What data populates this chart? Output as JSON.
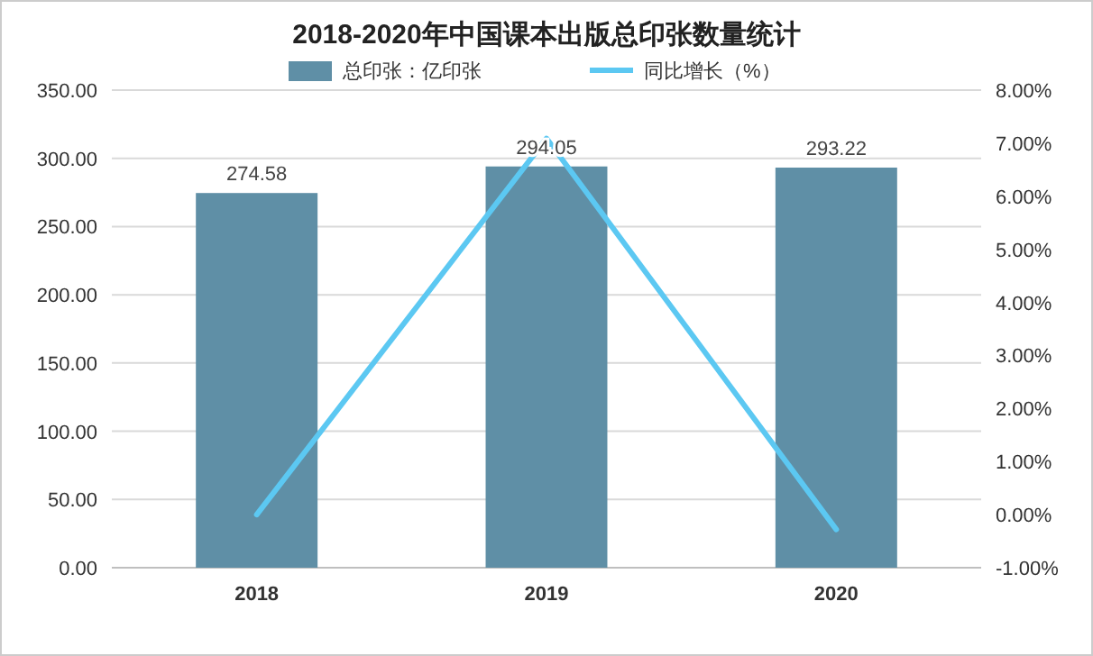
{
  "chart_data": {
    "type": "bar",
    "title": "2018-2020年中国课本出版总印张数量统计",
    "categories": [
      "2018",
      "2019",
      "2020"
    ],
    "series": [
      {
        "name": "总印张：亿印张",
        "color": "#5f8fa6",
        "values": [
          274.58,
          294.05,
          293.22
        ],
        "value_labels": [
          "274.58",
          "294.05",
          "293.22"
        ]
      },
      {
        "name": "同比增长（%）",
        "type": "line",
        "axis": "y2",
        "color": "#5cc8f2",
        "values": [
          0.0,
          7.09,
          -0.28
        ]
      }
    ],
    "ylim": [
      0,
      350
    ],
    "yticks": [
      {
        "value": 0,
        "label": "0.00"
      },
      {
        "value": 50,
        "label": "50.00"
      },
      {
        "value": 100,
        "label": "100.00"
      },
      {
        "value": 150,
        "label": "150.00"
      },
      {
        "value": 200,
        "label": "200.00"
      },
      {
        "value": 250,
        "label": "250.00"
      },
      {
        "value": 300,
        "label": "300.00"
      },
      {
        "value": 350,
        "label": "350.00"
      }
    ],
    "y2lim": [
      -1,
      8
    ],
    "y2ticks": [
      {
        "value": -1,
        "label": "-1.00%"
      },
      {
        "value": 0,
        "label": "0.00%"
      },
      {
        "value": 1,
        "label": "1.00%"
      },
      {
        "value": 2,
        "label": "2.00%"
      },
      {
        "value": 3,
        "label": "3.00%"
      },
      {
        "value": 4,
        "label": "4.00%"
      },
      {
        "value": 5,
        "label": "5.00%"
      },
      {
        "value": 6,
        "label": "6.00%"
      },
      {
        "value": 7,
        "label": "7.00%"
      },
      {
        "value": 8,
        "label": "8.00%"
      }
    ],
    "grid": "y",
    "legend": "top",
    "marker": "none",
    "line_style": "solid"
  }
}
